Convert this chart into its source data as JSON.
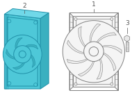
{
  "bg_color": "#ffffff",
  "blue_fill": "#4ec8d8",
  "blue_stroke": "#2090a8",
  "blue_dark": "#3ab0c0",
  "blue_light": "#70d8e8",
  "outline_stroke": "#808080",
  "outline_fill": "#f5f5f5",
  "dark_stroke": "#555555",
  "label1": "1",
  "label2": "2",
  "label3": "3",
  "font_size": 6.5
}
